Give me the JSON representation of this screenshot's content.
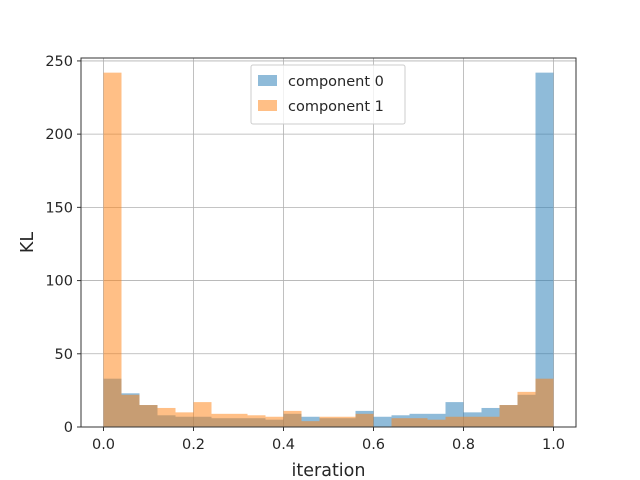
{
  "chart_data": {
    "type": "bar",
    "subtype": "overlapping histogram",
    "title": "",
    "xlabel": "iteration",
    "ylabel": "KL",
    "xlim": [
      -0.05,
      1.05
    ],
    "ylim": [
      0,
      252
    ],
    "xticks": [
      "0.0",
      "0.2",
      "0.4",
      "0.6",
      "0.8",
      "1.0"
    ],
    "yticks": [
      "0",
      "50",
      "100",
      "150",
      "200",
      "250"
    ],
    "grid": true,
    "legend_position": "top-center",
    "bin_edges": [
      0.0,
      0.04,
      0.08,
      0.12,
      0.16,
      0.2,
      0.24,
      0.28,
      0.32,
      0.36,
      0.4,
      0.44,
      0.48,
      0.52,
      0.56,
      0.6,
      0.64,
      0.68,
      0.72,
      0.76,
      0.8,
      0.84,
      0.88,
      0.92,
      0.96,
      1.0
    ],
    "series": [
      {
        "name": "component 0",
        "color": "#1f77b4",
        "alpha": 0.5,
        "values": [
          33,
          23,
          15,
          8,
          7,
          7,
          6,
          6,
          6,
          5,
          9,
          7,
          6,
          6,
          11,
          7,
          8,
          9,
          9,
          17,
          10,
          13,
          15,
          22,
          242
        ]
      },
      {
        "name": "component 1",
        "color": "#ff7f0e",
        "alpha": 0.5,
        "values": [
          242,
          22,
          15,
          13,
          10,
          17,
          9,
          9,
          8,
          7,
          11,
          4,
          7,
          7,
          9,
          0,
          6,
          6,
          5,
          7,
          7,
          7,
          15,
          24,
          33
        ]
      }
    ]
  }
}
